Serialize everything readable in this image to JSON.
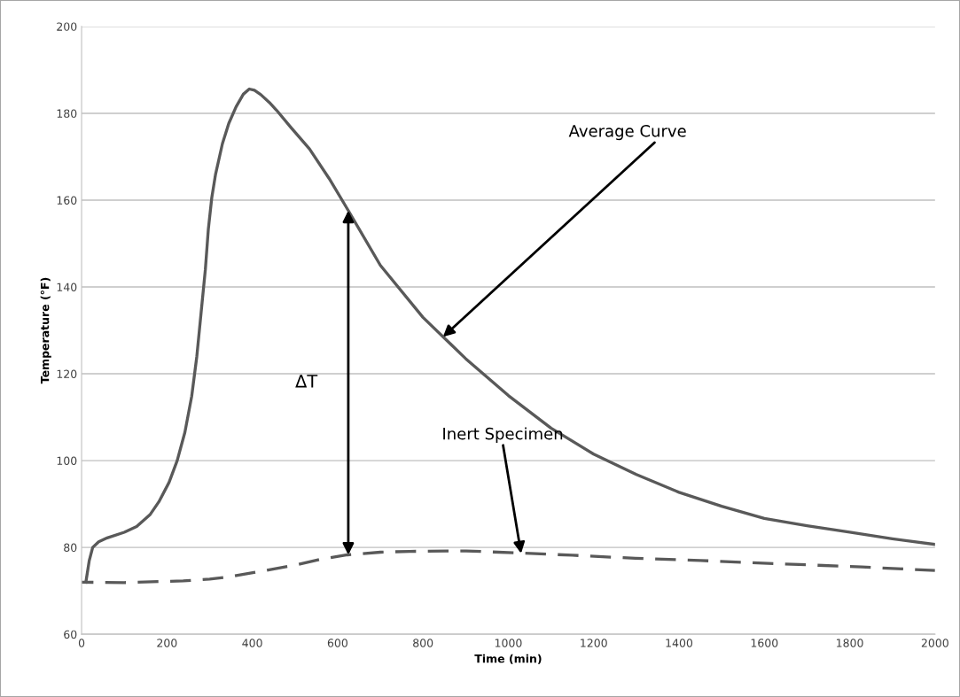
{
  "chart_data": {
    "type": "line",
    "xlabel": "Time (min)",
    "ylabel": "Temperature (°F)",
    "xlim": [
      0,
      2000
    ],
    "xticks": [
      0,
      200,
      400,
      600,
      800,
      1000,
      1200,
      1400,
      1600,
      1800,
      2000
    ],
    "ylim": [
      60,
      200
    ],
    "yticks": [
      60,
      80,
      100,
      120,
      140,
      160,
      180,
      200
    ],
    "grid": "y",
    "legend": false,
    "marker": "none",
    "series": [
      {
        "color": "#595959",
        "line_style": "solid",
        "x": [
          10,
          18,
          26,
          40,
          60,
          100,
          129,
          160,
          181,
          205,
          224,
          242,
          258,
          270,
          280,
          290,
          297,
          305,
          314,
          330,
          345,
          362,
          379,
          393,
          405,
          420,
          440,
          457,
          490,
          534,
          580,
          625,
          700,
          800,
          900,
          1000,
          1100,
          1200,
          1300,
          1400,
          1500,
          1600,
          1700,
          1800,
          1900,
          2000
        ],
        "values": [
          72,
          77,
          80,
          81.3,
          82.2,
          83.5,
          84.8,
          87.5,
          90.5,
          95,
          100,
          106.5,
          114.8,
          124,
          134,
          144,
          153.3,
          160.5,
          166,
          173,
          177.7,
          181.5,
          184.4,
          185.6,
          185.3,
          184.3,
          182.5,
          180.7,
          176.8,
          171.8,
          165,
          157.6,
          145,
          133,
          123.5,
          115,
          107.5,
          101.5,
          96.8,
          92.7,
          89.5,
          86.7,
          85,
          83.5,
          82,
          80.7
        ]
      },
      {
        "color": "#595959",
        "line_style": "dashed",
        "x": [
          0,
          100,
          238,
          300,
          344,
          420,
          503,
          560,
          623,
          700,
          768,
          901,
          1033,
          1150,
          1298,
          1450,
          1563,
          1700,
          1828,
          2000
        ],
        "values": [
          72,
          71.9,
          72.3,
          72.7,
          73.2,
          74.5,
          76,
          77.3,
          78.3,
          78.9,
          79.1,
          79.2,
          78.7,
          78.2,
          77.5,
          77,
          76.5,
          76,
          75.5,
          74.7
        ]
      }
    ],
    "annotations": [
      "ΔT",
      {
        "text": "Average Curve",
        "x": 847,
        "y": 128.5
      },
      {
        "text": "Inert Specimen",
        "x": 1030,
        "y": 78.6
      }
    ]
  }
}
